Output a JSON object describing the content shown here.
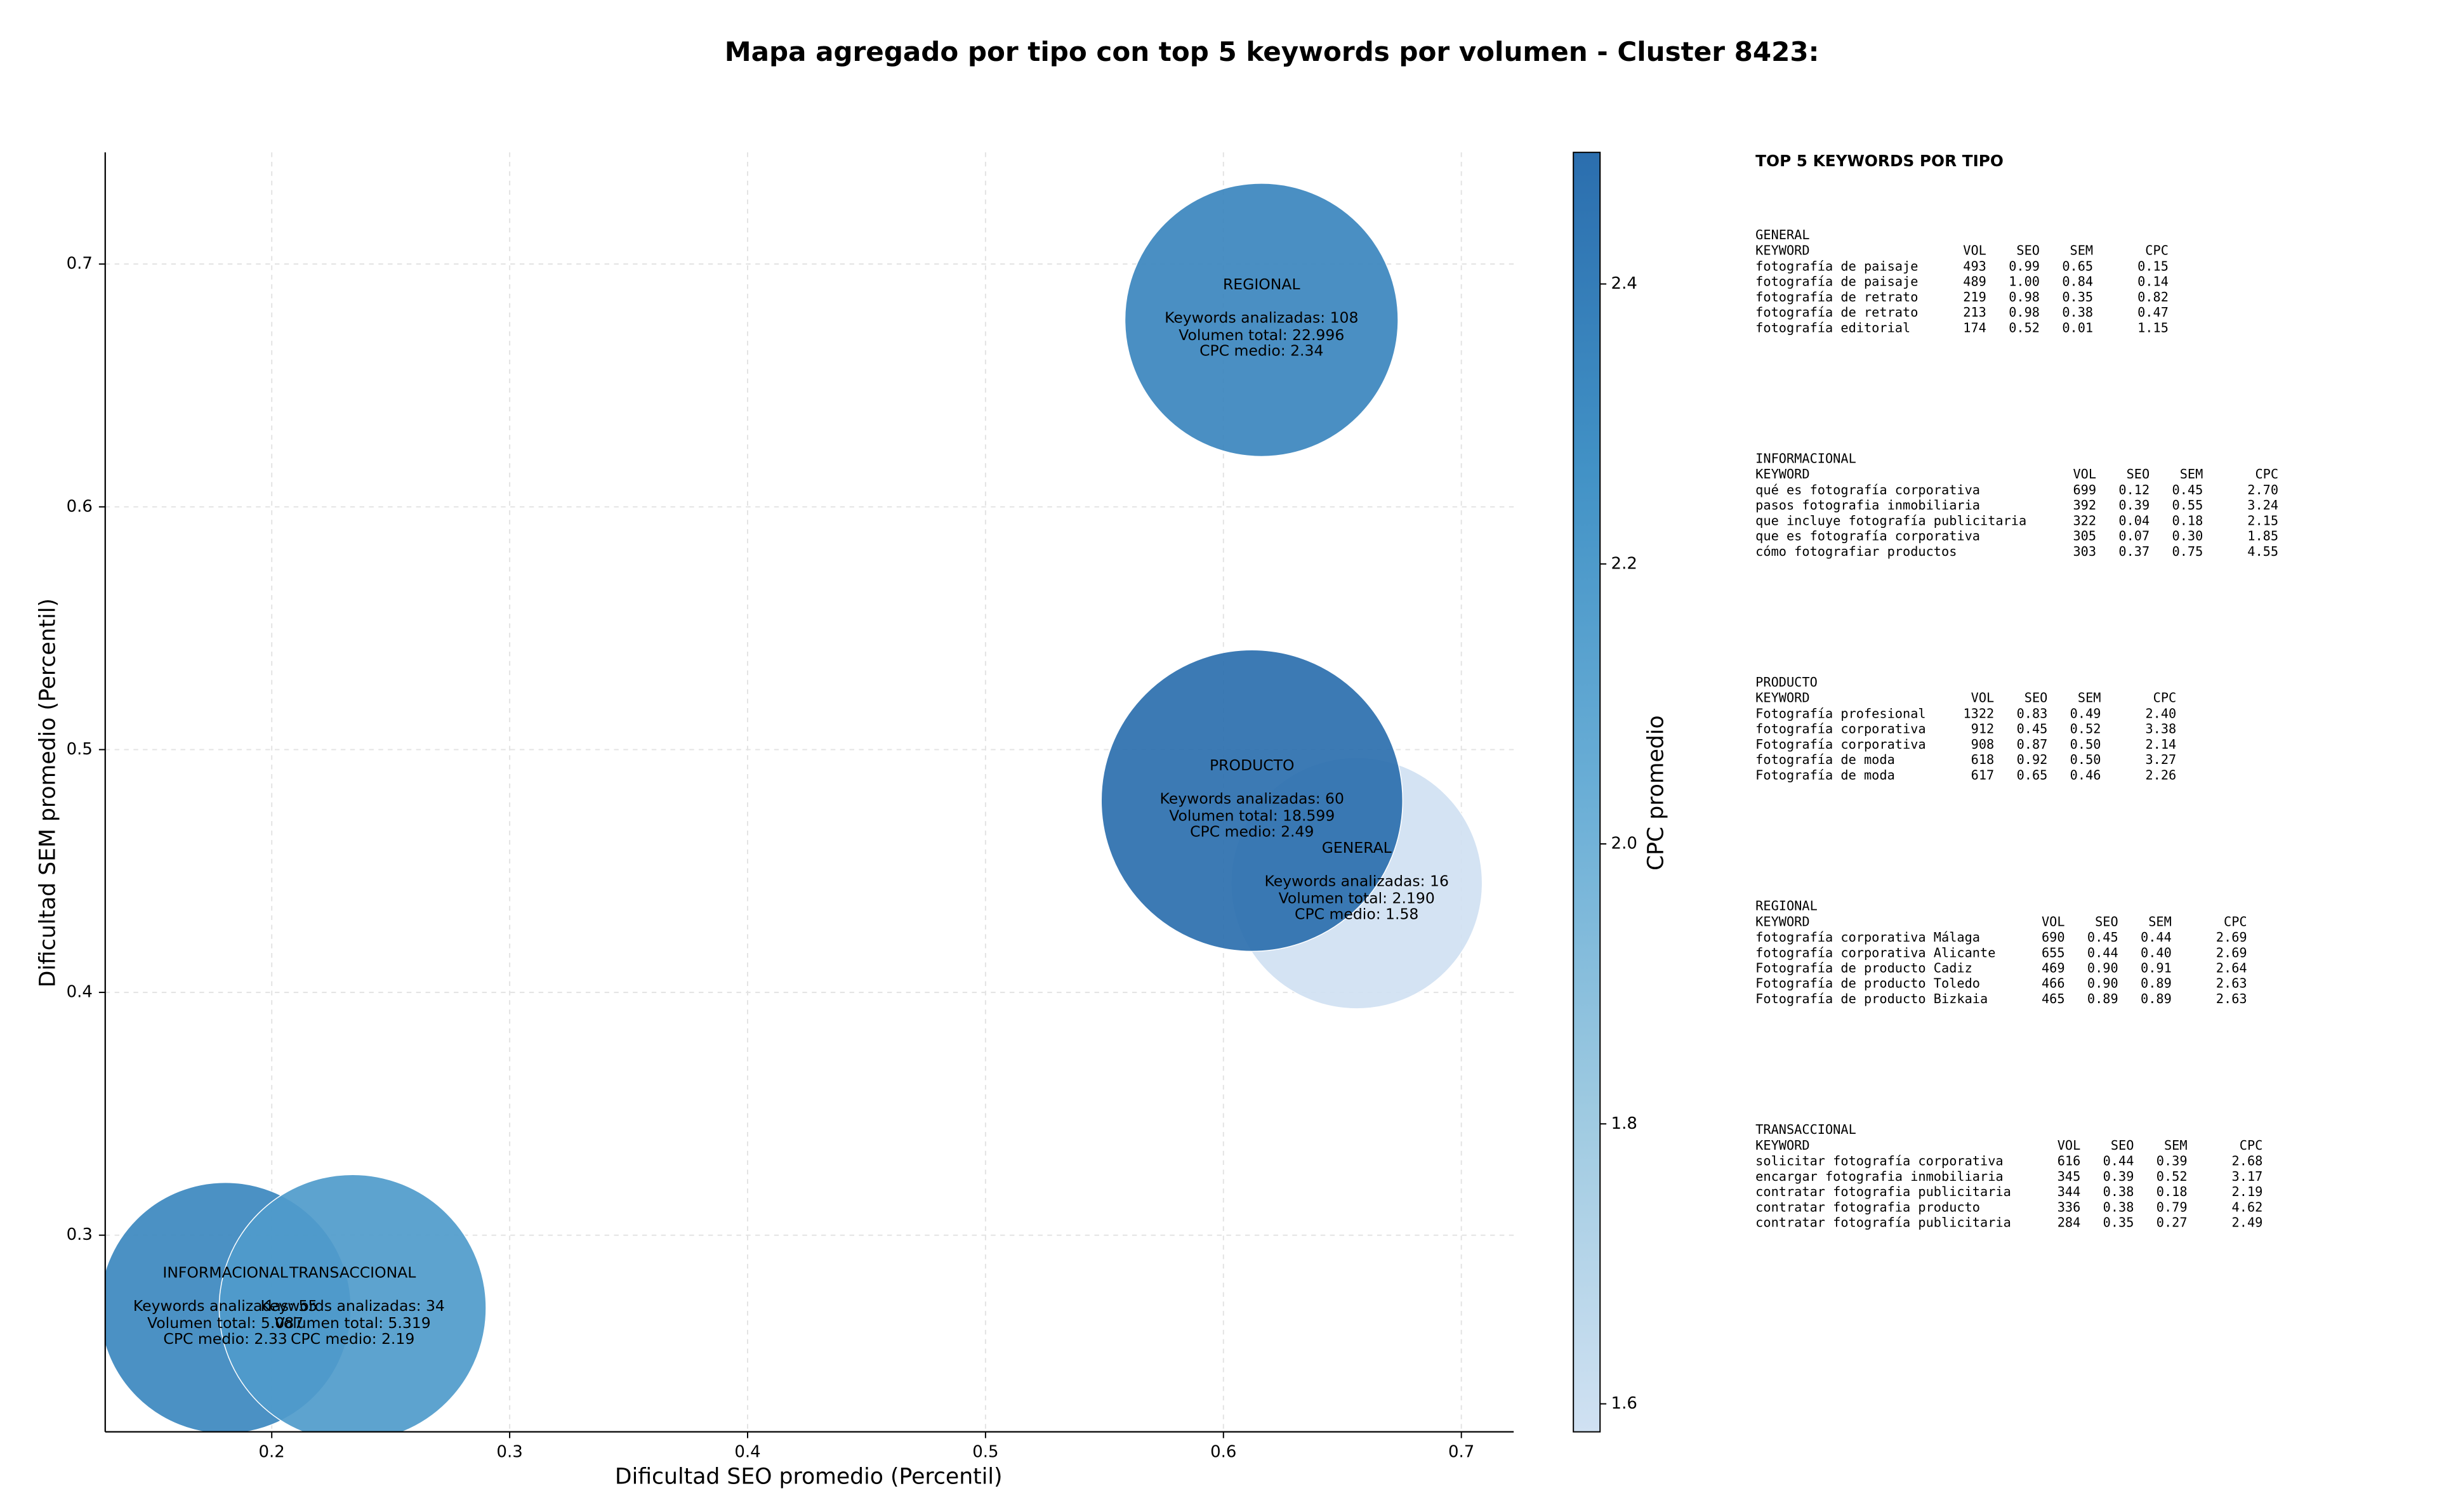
{
  "chart_data": {
    "type": "bubble",
    "title": "Mapa agregado por tipo con top 5 keywords por volumen - Cluster 8423:",
    "x_label": "Dificultad SEO promedio (Percentil)",
    "y_label": "Dificultad SEM promedio (Percentil)",
    "colorbar_label": "CPC promedio",
    "categories": [
      "GENERAL",
      "INFORMACIONAL",
      "PRODUCTO",
      "REGIONAL",
      "TRANSACCIONAL"
    ],
    "x": [
      0.656,
      0.1805,
      0.612,
      0.616,
      0.234
    ],
    "y": [
      0.445,
      0.27,
      0.479,
      0.677,
      0.27
    ],
    "sizes": [
      80,
      80,
      96,
      87,
      85
    ],
    "keywords_label": "Keywords analizadas:",
    "keywords": [
      16,
      55,
      60,
      108,
      34
    ],
    "volume_label": "Volumen total:",
    "volumes": [
      2190,
      5087,
      18599,
      22996,
      5319
    ],
    "volume_labels": [
      "2.190",
      "5.087",
      "18.599",
      "22.996",
      "5.319"
    ],
    "cpc_label": "CPC medio:",
    "cpc": [
      1.58,
      2.33,
      2.49,
      2.34,
      2.19
    ],
    "xlim": [
      0.13,
      0.722
    ],
    "ylim": [
      0.219,
      0.746
    ],
    "xticks": [
      0.2,
      0.3,
      0.4,
      0.5,
      0.6,
      0.7
    ],
    "yticks": [
      0.3,
      0.4,
      0.5,
      0.6,
      0.7
    ],
    "clim": [
      1.58,
      2.494
    ],
    "cticks": [
      1.6,
      1.8,
      2.0,
      2.2,
      2.4
    ],
    "colormap": [
      "#d0e1f2",
      "#9ecae1",
      "#6aaed6",
      "#4292c6",
      "#2b6eae"
    ],
    "grid": true
  },
  "side_panel": {
    "title": "TOP 5 KEYWORDS POR TIPO",
    "columns": [
      "KEYWORD",
      "VOL",
      "SEO",
      "SEM",
      "CPC"
    ],
    "groups": [
      {
        "name": "GENERAL",
        "rows": [
          [
            "fotografía de paisaje",
            "493",
            "0.99",
            "0.65",
            "0.15"
          ],
          [
            "fotografía de paisaje",
            "489",
            "1.00",
            "0.84",
            "0.14"
          ],
          [
            "fotografía de retrato",
            "219",
            "0.98",
            "0.35",
            "0.82"
          ],
          [
            "fotografía de retrato",
            "213",
            "0.98",
            "0.38",
            "0.47"
          ],
          [
            "fotografía editorial",
            "174",
            "0.52",
            "0.01",
            "1.15"
          ]
        ]
      },
      {
        "name": "INFORMACIONAL",
        "rows": [
          [
            "qué es fotografía corporativa",
            "699",
            "0.12",
            "0.45",
            "2.70"
          ],
          [
            "pasos fotografia inmobiliaria",
            "392",
            "0.39",
            "0.55",
            "3.24"
          ],
          [
            "que incluye fotografía publicitaria",
            "322",
            "0.04",
            "0.18",
            "2.15"
          ],
          [
            "que es fotografía corporativa",
            "305",
            "0.07",
            "0.30",
            "1.85"
          ],
          [
            "cómo fotografiar productos",
            "303",
            "0.37",
            "0.75",
            "4.55"
          ]
        ]
      },
      {
        "name": "PRODUCTO",
        "rows": [
          [
            "Fotografía profesional",
            "1322",
            "0.83",
            "0.49",
            "2.40"
          ],
          [
            "fotografía corporativa",
            "912",
            "0.45",
            "0.52",
            "3.38"
          ],
          [
            "Fotografía corporativa",
            "908",
            "0.87",
            "0.50",
            "2.14"
          ],
          [
            "fotografía de moda",
            "618",
            "0.92",
            "0.50",
            "3.27"
          ],
          [
            "Fotografía de moda",
            "617",
            "0.65",
            "0.46",
            "2.26"
          ]
        ]
      },
      {
        "name": "REGIONAL",
        "rows": [
          [
            "fotografía corporativa Málaga",
            "690",
            "0.45",
            "0.44",
            "2.69"
          ],
          [
            "fotografía corporativa Alicante",
            "655",
            "0.44",
            "0.40",
            "2.69"
          ],
          [
            "Fotografía de producto Cadiz",
            "469",
            "0.90",
            "0.91",
            "2.64"
          ],
          [
            "Fotografía de producto Toledo",
            "466",
            "0.90",
            "0.89",
            "2.63"
          ],
          [
            "Fotografía de producto Bizkaia",
            "465",
            "0.89",
            "0.89",
            "2.63"
          ]
        ]
      },
      {
        "name": "TRANSACCIONAL",
        "rows": [
          [
            "solicitar fotografía corporativa",
            "616",
            "0.44",
            "0.39",
            "2.68"
          ],
          [
            "encargar fotografia inmobiliaria",
            "345",
            "0.39",
            "0.52",
            "3.17"
          ],
          [
            "contratar fotografia publicitaria",
            "344",
            "0.38",
            "0.18",
            "2.19"
          ],
          [
            "contratar fotografia producto",
            "336",
            "0.38",
            "0.79",
            "4.62"
          ],
          [
            "contratar fotografía publicitaria",
            "284",
            "0.35",
            "0.27",
            "2.49"
          ]
        ]
      }
    ]
  }
}
